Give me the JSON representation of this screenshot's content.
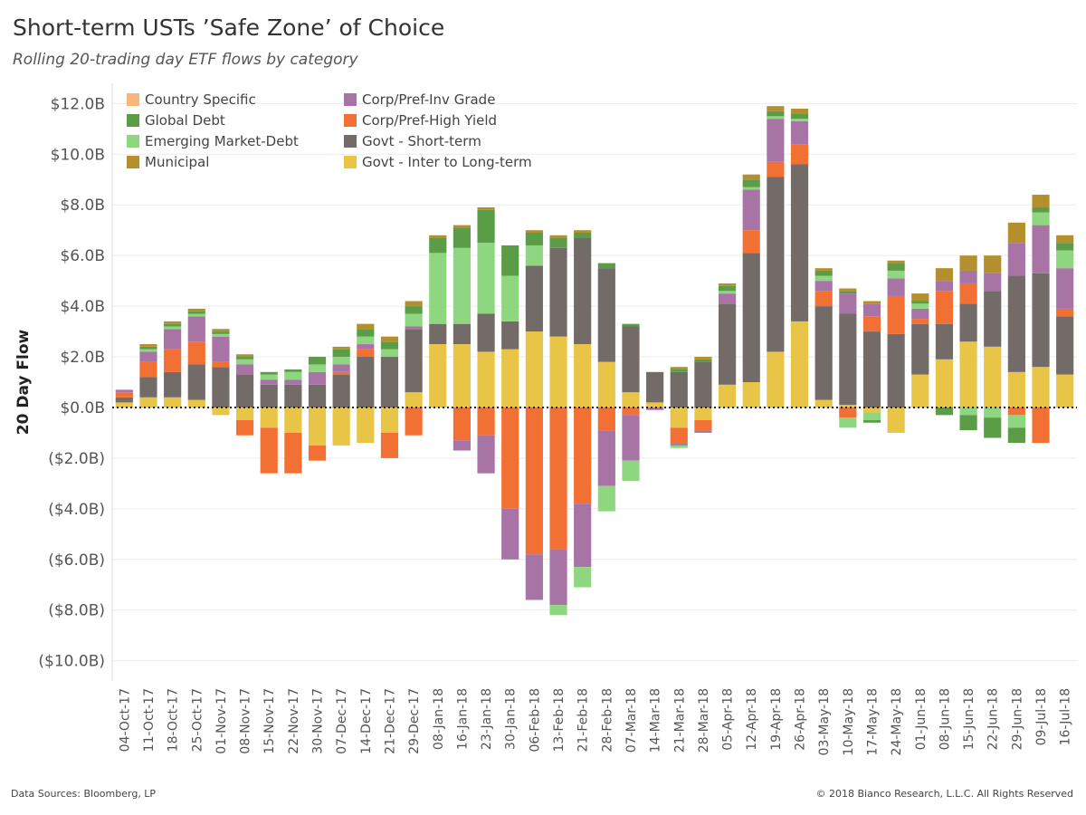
{
  "title": "Short-term USTs ’Safe Zone’ of Choice",
  "subtitle": "Rolling 20-trading day ETF flows by category",
  "footer": {
    "source": "Data Sources: Bloomberg, LP",
    "copyright": "© 2018 Bianco Research, L.L.C. All Rights Reserved"
  },
  "chart_data": {
    "type": "bar",
    "stacked": true,
    "ylabel": "20 Day Flow",
    "ylim": [
      -10.8,
      12.8
    ],
    "yticks": [
      12,
      10,
      8,
      6,
      4,
      2,
      0,
      -2,
      -4,
      -6,
      -8,
      -10
    ],
    "ytick_labels": [
      "$12.0B",
      "$10.0B",
      "$8.0B",
      "$6.0B",
      "$4.0B",
      "$2.0B",
      "$0.0B",
      "($2.0B)",
      "($4.0B)",
      "($6.0B)",
      "($8.0B)",
      "($10.0B)"
    ],
    "xtick_labels": [
      "04-Oct-17",
      "11-Oct-17",
      "18-Oct-17",
      "25-Oct-17",
      "01-Nov-17",
      "08-Nov-17",
      "15-Nov-17",
      "22-Nov-17",
      "30-Nov-17",
      "07-Dec-17",
      "14-Dec-17",
      "21-Dec-17",
      "29-Dec-17",
      "08-Jan-18",
      "16-Jan-18",
      "23-Jan-18",
      "30-Jan-18",
      "06-Feb-18",
      "13-Feb-18",
      "21-Feb-18",
      "28-Feb-18",
      "07-Mar-18",
      "14-Mar-18",
      "21-Mar-18",
      "28-Mar-18",
      "05-Apr-18",
      "12-Apr-18",
      "19-Apr-18",
      "26-Apr-18",
      "03-May-18",
      "10-May-18",
      "17-May-18",
      "24-May-18",
      "01-Jun-18",
      "08-Jun-18",
      "15-Jun-18",
      "22-Jun-18",
      "29-Jun-18",
      "09-Jul-18",
      "16-Jul-18"
    ],
    "grid": true,
    "legend_position": "top-left",
    "series": [
      {
        "name": "Govt - Inter to Long-term",
        "color": "#e8c547",
        "values": [
          0.2,
          0.4,
          0.4,
          0.3,
          -0.3,
          -0.5,
          -0.8,
          -1.0,
          -1.5,
          -1.5,
          -1.4,
          -1.0,
          0.6,
          2.5,
          2.5,
          2.2,
          2.3,
          3.0,
          2.8,
          2.5,
          1.8,
          0.6,
          0.2,
          -0.8,
          -0.5,
          0.9,
          1.0,
          2.2,
          3.4,
          0.3,
          0.1,
          -0.2,
          -1.0,
          1.3,
          1.9,
          2.6,
          2.4,
          1.4,
          1.6,
          1.3
        ]
      },
      {
        "name": "Govt - Short-term",
        "color": "#736b68",
        "values": [
          0.2,
          0.8,
          1.0,
          1.4,
          1.6,
          1.3,
          0.9,
          0.9,
          0.9,
          1.3,
          2.0,
          2.0,
          2.5,
          0.8,
          0.8,
          1.5,
          1.1,
          2.6,
          3.5,
          4.2,
          3.7,
          2.6,
          1.2,
          1.4,
          1.8,
          3.2,
          5.1,
          6.9,
          6.2,
          3.7,
          3.6,
          3.0,
          2.9,
          2.0,
          1.4,
          1.5,
          2.2,
          3.8,
          3.7,
          2.3
        ]
      },
      {
        "name": "Corp/Pref-High Yield",
        "color": "#f27033",
        "values": [
          0.2,
          0.6,
          0.9,
          0.9,
          0.2,
          -0.6,
          -1.8,
          -1.6,
          -0.6,
          0.1,
          0.3,
          -1.0,
          -1.1,
          0.0,
          -1.3,
          -1.1,
          -4.0,
          -5.8,
          -5.6,
          -3.8,
          -0.9,
          -0.3,
          0.0,
          -0.6,
          -0.4,
          0.0,
          0.9,
          0.6,
          0.8,
          0.6,
          -0.4,
          0.6,
          1.5,
          0.2,
          1.3,
          0.8,
          0.0,
          -0.3,
          -1.4,
          0.3
        ]
      },
      {
        "name": "Corp/Pref-Inv Grade",
        "color": "#a874a6",
        "values": [
          0.1,
          0.4,
          0.8,
          1.0,
          1.0,
          0.4,
          0.2,
          0.2,
          0.5,
          0.3,
          0.2,
          0.0,
          0.1,
          0.0,
          -0.4,
          -1.5,
          -2.0,
          -1.8,
          -2.2,
          -2.5,
          -2.2,
          -1.8,
          -0.1,
          -0.1,
          -0.1,
          0.4,
          1.6,
          1.7,
          0.9,
          0.4,
          0.8,
          0.5,
          0.7,
          0.4,
          0.4,
          0.5,
          0.7,
          1.3,
          1.9,
          1.6
        ]
      },
      {
        "name": "Emerging Market-Debt",
        "color": "#8fd680",
        "values": [
          0.0,
          0.1,
          0.1,
          0.1,
          0.1,
          0.2,
          0.2,
          0.3,
          0.3,
          0.3,
          0.3,
          0.3,
          0.5,
          2.8,
          3.0,
          2.8,
          1.8,
          0.8,
          -0.4,
          -0.8,
          -1.0,
          -0.8,
          0.0,
          -0.1,
          0.0,
          0.1,
          0.1,
          0.1,
          0.1,
          0.2,
          -0.4,
          -0.3,
          0.3,
          0.2,
          0.0,
          -0.3,
          -0.4,
          -0.5,
          0.5,
          0.7
        ]
      },
      {
        "name": "Global Debt",
        "color": "#5b9c46",
        "values": [
          0.0,
          0.1,
          0.1,
          0.1,
          0.1,
          0.1,
          0.1,
          0.1,
          0.3,
          0.3,
          0.3,
          0.3,
          0.3,
          0.6,
          0.8,
          1.3,
          1.2,
          0.5,
          0.4,
          0.2,
          0.2,
          0.1,
          0.0,
          0.1,
          0.1,
          0.2,
          0.3,
          0.2,
          0.2,
          0.2,
          0.1,
          -0.1,
          0.3,
          0.1,
          -0.3,
          -0.6,
          -0.8,
          -0.6,
          0.2,
          0.3
        ]
      },
      {
        "name": "Municipal",
        "color": "#b38f2e",
        "values": [
          0.0,
          0.1,
          0.1,
          0.1,
          0.1,
          0.1,
          0.0,
          0.0,
          0.0,
          0.1,
          0.2,
          0.2,
          0.2,
          0.1,
          0.1,
          0.1,
          0.0,
          0.1,
          0.1,
          0.1,
          0.0,
          0.0,
          0.0,
          0.1,
          0.1,
          0.1,
          0.2,
          0.2,
          0.2,
          0.1,
          0.1,
          0.1,
          0.1,
          0.3,
          0.5,
          0.6,
          0.7,
          0.8,
          0.5,
          0.3
        ]
      },
      {
        "name": "Country Specific",
        "color": "#f8b67e",
        "values": [
          0.0,
          0.0,
          0.0,
          0.0,
          0.0,
          0.0,
          0.0,
          0.0,
          0.0,
          0.0,
          0.0,
          0.0,
          0.0,
          0.0,
          0.0,
          0.0,
          0.0,
          0.0,
          0.0,
          0.0,
          0.0,
          0.0,
          0.0,
          0.0,
          0.0,
          0.0,
          0.0,
          0.0,
          0.0,
          0.0,
          0.0,
          0.0,
          0.0,
          0.0,
          0.0,
          0.0,
          0.0,
          0.0,
          0.0,
          0.0
        ]
      }
    ]
  }
}
